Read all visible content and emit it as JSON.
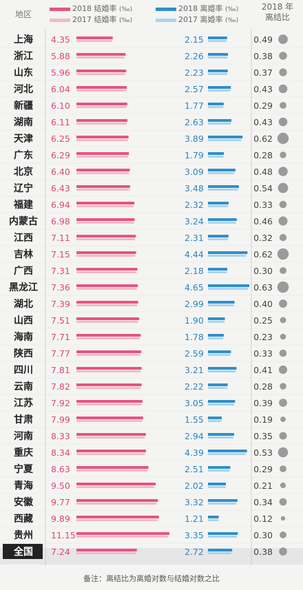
{
  "header": {
    "region_label": "地区",
    "legend_marriage_2018": "2018 结婚率",
    "legend_marriage_2017": "2017 结婚率",
    "legend_divorce_2018": "2018 离婚率",
    "legend_divorce_2017": "2017 离婚率",
    "unit": "(‰)",
    "ratio_label_line1": "2018 年",
    "ratio_label_line2": "离结比"
  },
  "footnote": "备注：离结比为离婚对数与结婚对数之比",
  "colors": {
    "marriage_2018": "#e8537f",
    "marriage_2017": "#f4b8cc",
    "divorce_2018": "#2f8fcb",
    "divorce_2017": "#a9d4ee",
    "marriage_text": "#e0457a",
    "divorce_text": "#2a86c2",
    "ratio_dot": "#9a9a9a"
  },
  "chart_data": {
    "type": "bar",
    "categories": [
      "上海",
      "浙江",
      "山东",
      "河北",
      "新疆",
      "湖南",
      "天津",
      "广东",
      "北京",
      "辽宁",
      "福建",
      "内蒙古",
      "江西",
      "吉林",
      "广西",
      "黑龙江",
      "湖北",
      "山西",
      "海南",
      "陕西",
      "四川",
      "云南",
      "江苏",
      "甘肃",
      "河南",
      "重庆",
      "宁夏",
      "青海",
      "安徽",
      "西藏",
      "贵州",
      "全国"
    ],
    "series": [
      {
        "name": "2018 结婚率",
        "unit": "‰",
        "values": [
          "4.35",
          "5.88",
          "5.96",
          "6.04",
          "6.10",
          "6.11",
          "6.25",
          "6.29",
          "6.40",
          "6.43",
          "6.94",
          "6.98",
          "7.11",
          "7.15",
          "7.31",
          "7.36",
          "7.39",
          "7.51",
          "7.71",
          "7.77",
          "7.81",
          "7.82",
          "7.92",
          "7.99",
          "8.33",
          "8.34",
          "8.63",
          "9.50",
          "9.77",
          "9.89",
          "11.15",
          "7.24"
        ]
      },
      {
        "name": "2018 离婚率",
        "unit": "‰",
        "values": [
          "2.15",
          "2.26",
          "2.23",
          "2.57",
          "1.77",
          "2.63",
          "3.89",
          "1.79",
          "3.09",
          "3.48",
          "2.32",
          "3.24",
          "2.31",
          "4.44",
          "2.18",
          "4.65",
          "2.99",
          "1.90",
          "1.78",
          "2.59",
          "3.21",
          "2.22",
          "3.05",
          "1.55",
          "2.94",
          "4.39",
          "2.51",
          "2.02",
          "3.32",
          "1.21",
          "3.35",
          "2.72"
        ]
      },
      {
        "name": "2018 年离结比",
        "values": [
          "0.49",
          "0.38",
          "0.37",
          "0.43",
          "0.29",
          "0.43",
          "0.62",
          "0.28",
          "0.48",
          "0.54",
          "0.33",
          "0.46",
          "0.32",
          "0.62",
          "0.30",
          "0.63",
          "0.40",
          "0.25",
          "0.23",
          "0.33",
          "0.41",
          "0.28",
          "0.39",
          "0.19",
          "0.35",
          "0.53",
          "0.29",
          "0.21",
          "0.34",
          "0.12",
          "0.30",
          "0.38"
        ]
      }
    ]
  }
}
